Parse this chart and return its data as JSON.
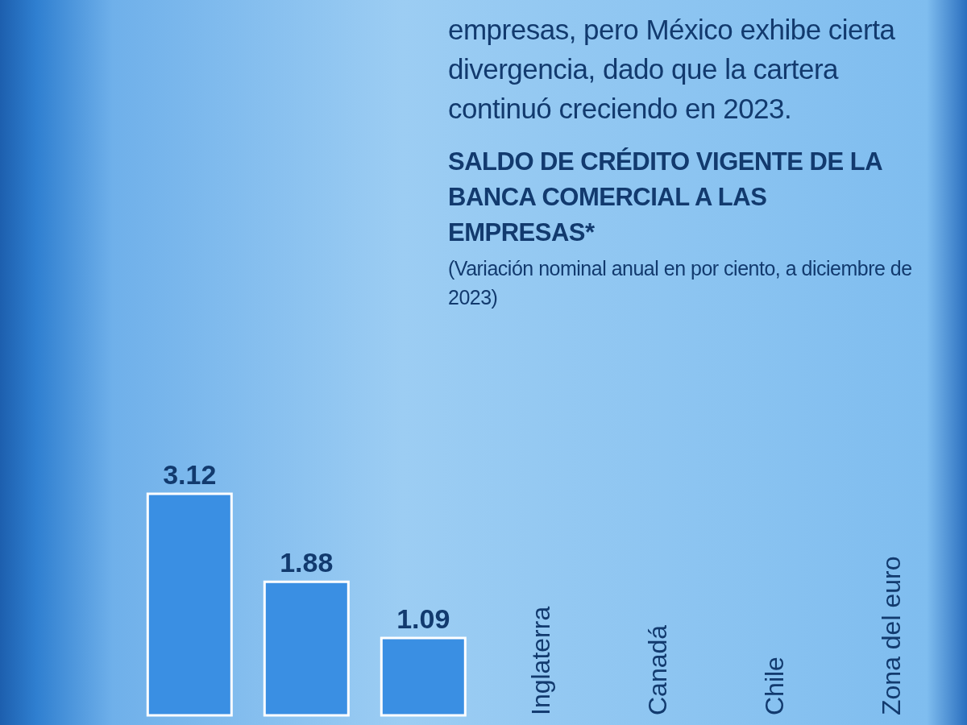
{
  "chart_data": {
    "type": "bar",
    "title": "SALDO DE CRÉDITO VIGENTE DE LA BANCA COMERCIAL A LAS EMPRESAS*",
    "subtitle": "(Variación nominal anual en por ciento, a diciembre de 2023)",
    "annotations": [
      "empresas, pero México exhibe cierta divergencia, dado que la cartera continuó creciendo en 2023."
    ],
    "categories": [
      null,
      null,
      null,
      "Inglaterra",
      "Canadá",
      "Chile",
      "Zona del euro"
    ],
    "values": [
      3.12,
      1.88,
      1.09,
      null,
      null,
      null,
      null
    ],
    "color": "#3a8fe3",
    "data_labels": true
  }
}
